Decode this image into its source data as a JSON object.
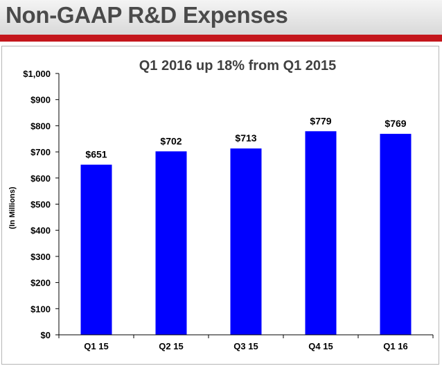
{
  "slide": {
    "title": "Non-GAAP R&D Expenses"
  },
  "colors": {
    "accent_bar": "#c4161c",
    "bar_fill": "#0000ff"
  },
  "chart_data": {
    "type": "bar",
    "title": "Q1 2016 up 18% from Q1 2015",
    "categories": [
      "Q1 15",
      "Q2 15",
      "Q3 15",
      "Q4 15",
      "Q1 16"
    ],
    "values": [
      651,
      702,
      713,
      779,
      769
    ],
    "data_labels": [
      "$651",
      "$702",
      "$713",
      "$779",
      "$769"
    ],
    "xlabel": "",
    "ylabel": "(In Millions)",
    "ylim": [
      0,
      1000
    ],
    "yticks": [
      0,
      100,
      200,
      300,
      400,
      500,
      600,
      700,
      800,
      900,
      1000
    ],
    "ytick_labels": [
      "$0",
      "$100",
      "$200",
      "$300",
      "$400",
      "$500",
      "$600",
      "$700",
      "$800",
      "$900",
      "$1,000"
    ],
    "grid": false,
    "legend": "none"
  }
}
